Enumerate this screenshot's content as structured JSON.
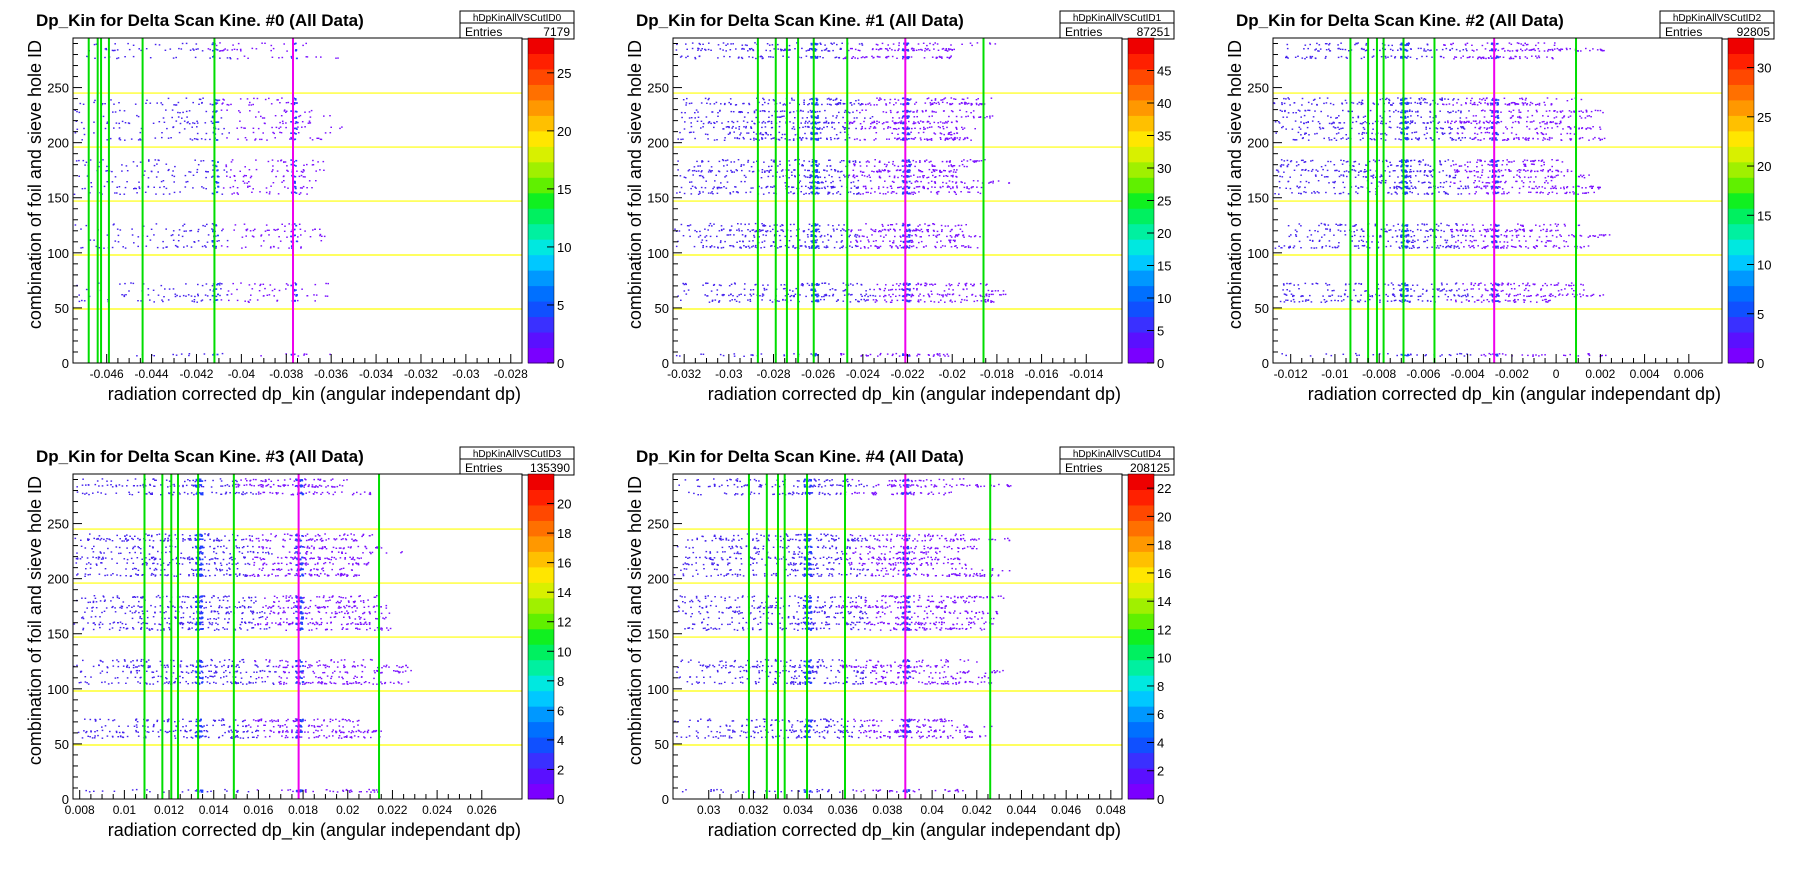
{
  "chart_data": [
    {
      "type": "heatmap",
      "title": "Dp_Kin for Delta Scan Kine. #0 (All Data)",
      "histogram_name": "hDpKinAllVSCutID0",
      "stats_label": "Entries",
      "entries": "7179",
      "xlabel": "radiation corrected dp_kin (angular independant dp)",
      "ylabel": "combination of foil and sieve hole ID",
      "xlim": [
        -0.0475,
        -0.0275
      ],
      "ylim": [
        0,
        295
      ],
      "xticks": [
        -0.046,
        -0.044,
        -0.042,
        -0.04,
        -0.038,
        -0.036,
        -0.034,
        -0.032,
        -0.03,
        -0.028
      ],
      "xtick_labels": [
        "-0.046",
        "-0.044",
        "-0.042",
        "-0.04",
        "-0.038",
        "-0.036",
        "-0.034",
        "-0.032",
        "-0.03",
        "-0.028"
      ],
      "yticks": [
        0,
        50,
        100,
        150,
        200,
        250
      ],
      "ytick_labels": [
        "0",
        "50",
        "100",
        "150",
        "200",
        "250"
      ],
      "zmax": 28,
      "zticks": [
        0,
        5,
        10,
        15,
        20,
        25
      ],
      "ztick_labels": [
        "0",
        "5",
        "10",
        "15",
        "20",
        "25"
      ],
      "horizontal_lines_y": [
        49,
        98,
        147,
        196,
        245
      ],
      "green_lines_x": [
        -0.0468,
        -0.0464,
        -0.04625,
        -0.0459,
        -0.0444,
        -0.0412
      ],
      "magenta_line_x": -0.0377,
      "data_x_range": [
        -0.0475,
        -0.0345
      ],
      "data_peaks_x": [
        -0.0412,
        -0.0377
      ]
    },
    {
      "type": "heatmap",
      "title": "Dp_Kin for Delta Scan Kine. #1 (All Data)",
      "histogram_name": "hDpKinAllVSCutID1",
      "stats_label": "Entries",
      "entries": "87251",
      "xlabel": "radiation corrected dp_kin (angular independant dp)",
      "ylabel": "combination of foil and sieve hole ID",
      "xlim": [
        -0.0325,
        -0.0124
      ],
      "ylim": [
        0,
        295
      ],
      "xticks": [
        -0.032,
        -0.03,
        -0.028,
        -0.026,
        -0.024,
        -0.022,
        -0.02,
        -0.018,
        -0.016,
        -0.014
      ],
      "xtick_labels": [
        "-0.032",
        "-0.03",
        "-0.028",
        "-0.026",
        "-0.024",
        "-0.022",
        "-0.02",
        "-0.018",
        "-0.016",
        "-0.014"
      ],
      "yticks": [
        0,
        50,
        100,
        150,
        200,
        250
      ],
      "ytick_labels": [
        "0",
        "50",
        "100",
        "150",
        "200",
        "250"
      ],
      "zmax": 50,
      "zticks": [
        0,
        5,
        10,
        15,
        20,
        25,
        30,
        35,
        40,
        45
      ],
      "ztick_labels": [
        "0",
        "5",
        "10",
        "15",
        "20",
        "25",
        "30",
        "35",
        "40",
        "45"
      ],
      "horizontal_lines_y": [
        49,
        98,
        147,
        196,
        245
      ],
      "green_lines_x": [
        -0.0287,
        -0.0279,
        -0.0274,
        -0.0269,
        -0.0262,
        -0.0247,
        -0.0186
      ],
      "magenta_line_x": -0.0221,
      "data_x_range": [
        -0.0325,
        -0.0165
      ],
      "data_peaks_x": [
        -0.0262,
        -0.0221
      ]
    },
    {
      "type": "heatmap",
      "title": "Dp_Kin for Delta Scan Kine. #2 (All Data)",
      "histogram_name": "hDpKinAllVSCutID2",
      "stats_label": "Entries",
      "entries": "92805",
      "xlabel": "radiation corrected dp_kin (angular independant dp)",
      "ylabel": "combination of foil and sieve hole ID",
      "xlim": [
        -0.0128,
        0.0075
      ],
      "ylim": [
        0,
        295
      ],
      "xticks": [
        -0.012,
        -0.01,
        -0.008,
        -0.006,
        -0.004,
        -0.002,
        0,
        0.002,
        0.004,
        0.006
      ],
      "xtick_labels": [
        "-0.012",
        "-0.01",
        "-0.008",
        "-0.006",
        "-0.004",
        "-0.002",
        "0",
        "0.002",
        "0.004",
        "0.006"
      ],
      "yticks": [
        0,
        50,
        100,
        150,
        200,
        250
      ],
      "ytick_labels": [
        "0",
        "50",
        "100",
        "150",
        "200",
        "250"
      ],
      "zmax": 33,
      "zticks": [
        0,
        5,
        10,
        15,
        20,
        25,
        30
      ],
      "ztick_labels": [
        "0",
        "5",
        "10",
        "15",
        "20",
        "25",
        "30"
      ],
      "horizontal_lines_y": [
        49,
        98,
        147,
        196,
        245
      ],
      "green_lines_x": [
        -0.0093,
        -0.0085,
        -0.0081,
        -0.0078,
        -0.0069,
        -0.0055,
        0.0009
      ],
      "magenta_line_x": -0.0028,
      "data_x_range": [
        -0.0128,
        0.0035
      ],
      "data_peaks_x": [
        -0.0069,
        -0.0028
      ]
    },
    {
      "type": "heatmap",
      "title": "Dp_Kin for Delta Scan Kine. #3 (All Data)",
      "histogram_name": "hDpKinAllVSCutID3",
      "stats_label": "Entries",
      "entries": "135390",
      "xlabel": "radiation corrected dp_kin (angular independant dp)",
      "ylabel": "combination of foil and sieve hole ID",
      "xlim": [
        0.0077,
        0.0278
      ],
      "ylim": [
        0,
        295
      ],
      "xticks": [
        0.008,
        0.01,
        0.012,
        0.014,
        0.016,
        0.018,
        0.02,
        0.022,
        0.024,
        0.026
      ],
      "xtick_labels": [
        "0.008",
        "0.01",
        "0.012",
        "0.014",
        "0.016",
        "0.018",
        "0.02",
        "0.022",
        "0.024",
        "0.026"
      ],
      "yticks": [
        0,
        50,
        100,
        150,
        200,
        250
      ],
      "ytick_labels": [
        "0",
        "50",
        "100",
        "150",
        "200",
        "250"
      ],
      "zmax": 22,
      "zticks": [
        0,
        2,
        4,
        6,
        8,
        10,
        12,
        14,
        16,
        18,
        20
      ],
      "ztick_labels": [
        "0",
        "2",
        "4",
        "6",
        "8",
        "10",
        "12",
        "14",
        "16",
        "18",
        "20"
      ],
      "horizontal_lines_y": [
        49,
        98,
        147,
        196,
        245
      ],
      "green_lines_x": [
        0.0109,
        0.0117,
        0.0121,
        0.0124,
        0.0133,
        0.0149,
        0.0214
      ],
      "magenta_line_x": 0.0178,
      "data_x_range": [
        0.0077,
        0.0238
      ],
      "data_peaks_x": [
        0.0133,
        0.0178
      ]
    },
    {
      "type": "heatmap",
      "title": "Dp_Kin for Delta Scan Kine. #4 (All Data)",
      "histogram_name": "hDpKinAllVSCutID4",
      "stats_label": "Entries",
      "entries": "208125",
      "xlabel": "radiation corrected dp_kin (angular independant dp)",
      "ylabel": "combination of foil and sieve hole ID",
      "xlim": [
        0.0284,
        0.0485
      ],
      "ylim": [
        0,
        295
      ],
      "xticks": [
        0.03,
        0.032,
        0.034,
        0.036,
        0.038,
        0.04,
        0.042,
        0.044,
        0.046,
        0.048
      ],
      "xtick_labels": [
        "0.03",
        "0.032",
        "0.034",
        "0.036",
        "0.038",
        "0.04",
        "0.042",
        "0.044",
        "0.046",
        "0.048"
      ],
      "yticks": [
        0,
        50,
        100,
        150,
        200,
        250
      ],
      "ytick_labels": [
        "0",
        "50",
        "100",
        "150",
        "200",
        "250"
      ],
      "zmax": 23,
      "zticks": [
        0,
        2,
        4,
        6,
        8,
        10,
        12,
        14,
        16,
        18,
        20,
        22
      ],
      "ztick_labels": [
        "0",
        "2",
        "4",
        "6",
        "8",
        "10",
        "12",
        "14",
        "16",
        "18",
        "20",
        "22"
      ],
      "horizontal_lines_y": [
        49,
        98,
        147,
        196,
        245
      ],
      "green_lines_x": [
        0.0318,
        0.0326,
        0.0331,
        0.0334,
        0.0344,
        0.0361,
        0.0426
      ],
      "magenta_line_x": 0.0388,
      "data_x_range": [
        0.0284,
        0.0445
      ],
      "data_peaks_x": [
        0.0344,
        0.0388
      ]
    }
  ],
  "colors": {
    "reference_line": "#ffff00",
    "green_line": "#00dd00",
    "magenta_line": "#ee00ee",
    "data_point": "#4422ee",
    "palette": [
      "#7a00ff",
      "#5a10ff",
      "#3a30ff",
      "#1050ff",
      "#0070ff",
      "#0098ff",
      "#00c8ff",
      "#00e8e0",
      "#00f0a0",
      "#00f060",
      "#10f020",
      "#60f000",
      "#a0f000",
      "#d8f000",
      "#ffe600",
      "#ffc000",
      "#ff9800",
      "#ff7000",
      "#ff4800",
      "#ff2000",
      "#ee0000"
    ]
  }
}
